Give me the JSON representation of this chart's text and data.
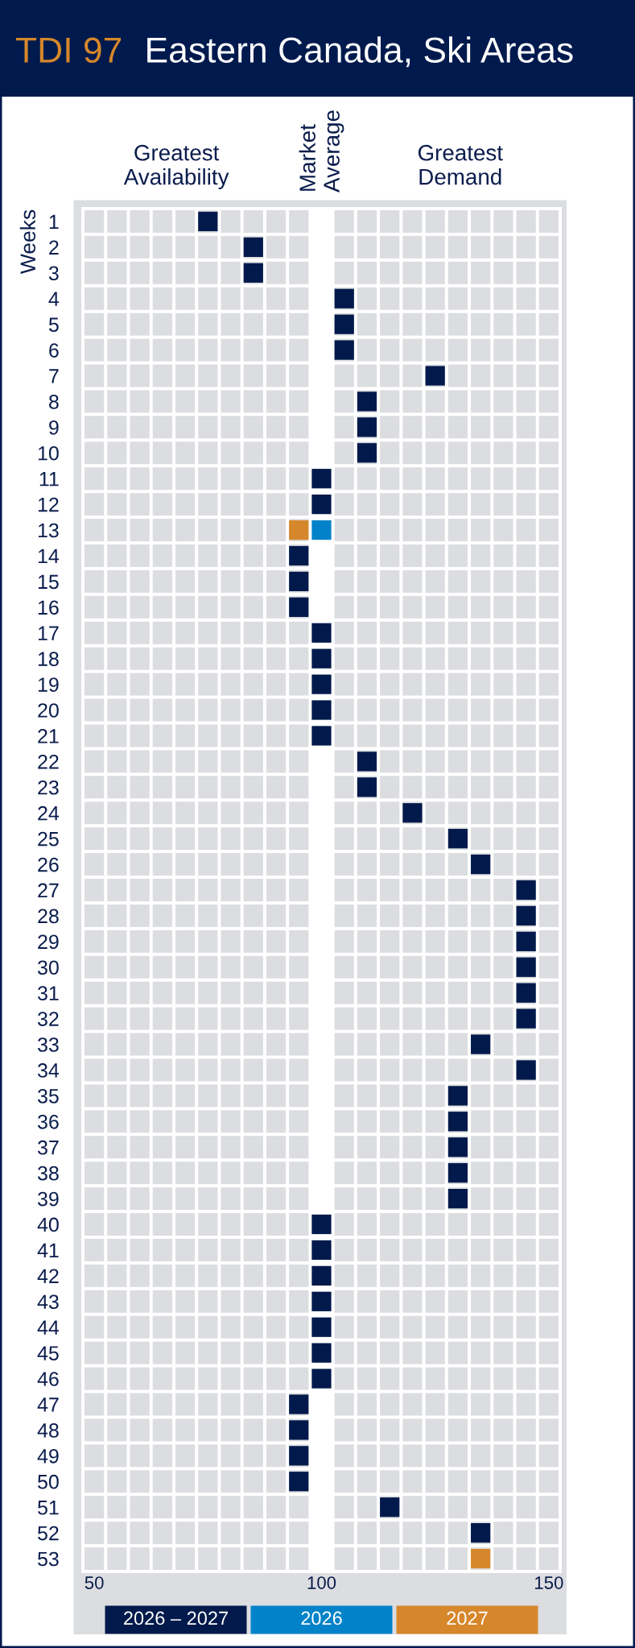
{
  "chart_data": {
    "type": "scatter",
    "title": "TDI 97",
    "subtitle": "Eastern Canada, Ski Areas",
    "ylabel": "Weeks",
    "annotations": [
      "Greatest\nAvailability",
      "Market\nAverage",
      "Greatest\nDemand"
    ],
    "xlim": [
      47.5,
      152.5
    ],
    "xticks": [
      50,
      100,
      150
    ],
    "ylim": [
      53.5,
      0.5
    ],
    "yticks": [
      1,
      2,
      3,
      4,
      5,
      6,
      7,
      8,
      9,
      10,
      11,
      12,
      13,
      14,
      15,
      16,
      17,
      18,
      19,
      20,
      21,
      22,
      23,
      24,
      25,
      26,
      27,
      28,
      29,
      30,
      31,
      32,
      33,
      34,
      35,
      36,
      37,
      38,
      39,
      40,
      41,
      42,
      43,
      44,
      45,
      46,
      47,
      48,
      49,
      50,
      51,
      52,
      53
    ],
    "marker": "square",
    "legend": "bottom",
    "bands": [
      {
        "axis": "x",
        "from": 97.5,
        "to": 102.5,
        "color": "#ffffff"
      }
    ],
    "series": [
      {
        "name": "2026 – 2027",
        "color": "#011a4b",
        "x": [
          75,
          85,
          85,
          105,
          105,
          105,
          125,
          110,
          110,
          110,
          100,
          100,
          95,
          95,
          95,
          100,
          100,
          100,
          100,
          100,
          110,
          110,
          120,
          130,
          135,
          145,
          145,
          145,
          145,
          145,
          145,
          135,
          145,
          130,
          130,
          130,
          130,
          130,
          100,
          100,
          100,
          100,
          100,
          100,
          100,
          95,
          95,
          95,
          95,
          115,
          135
        ],
        "values": [
          1,
          2,
          3,
          4,
          5,
          6,
          7,
          8,
          9,
          10,
          11,
          12,
          14,
          15,
          16,
          17,
          18,
          19,
          20,
          21,
          22,
          23,
          24,
          25,
          26,
          27,
          28,
          29,
          30,
          31,
          32,
          33,
          34,
          35,
          36,
          37,
          38,
          39,
          40,
          41,
          42,
          43,
          44,
          45,
          46,
          47,
          48,
          49,
          50,
          51,
          52
        ]
      },
      {
        "name": "2026",
        "color": "#0282c8",
        "x": [
          100
        ],
        "values": [
          13
        ]
      },
      {
        "name": "2027",
        "color": "#d6872b",
        "x": [
          95,
          135
        ],
        "values": [
          13,
          53
        ]
      }
    ]
  }
}
